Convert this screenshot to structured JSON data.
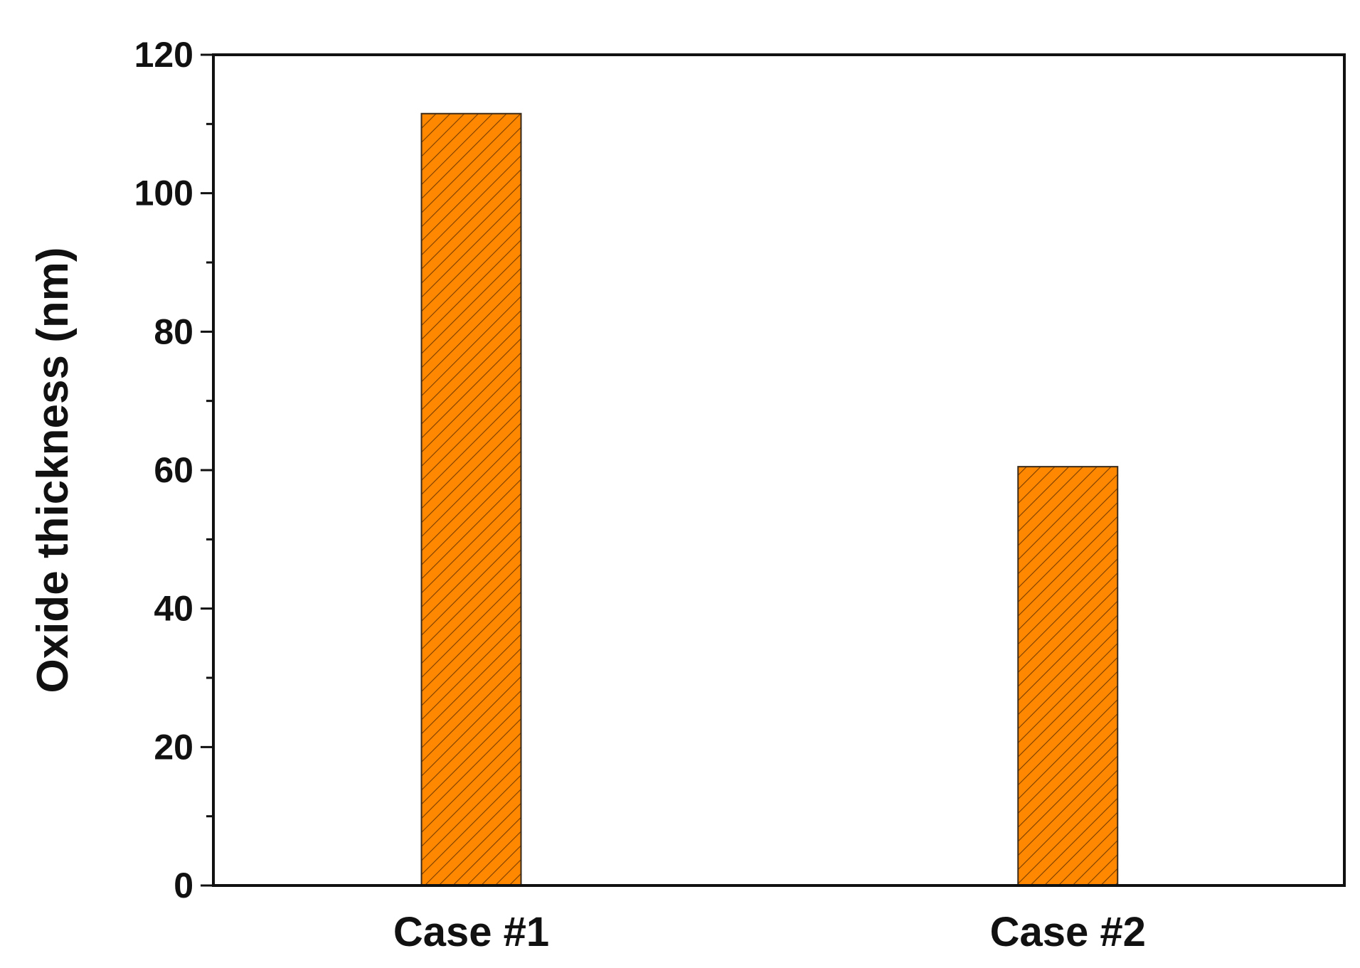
{
  "chart_data": {
    "type": "bar",
    "categories": [
      "Case #1",
      "Case #2"
    ],
    "values": [
      111.5,
      60.5
    ],
    "ylabel": "Oxide thickness (nm)",
    "xlabel": "",
    "ylim": [
      0,
      120
    ],
    "yticks": [
      "0",
      "20",
      "40",
      "60",
      "80",
      "100",
      "120"
    ],
    "grid": false,
    "legend": "none",
    "bar_color": "#ff8800",
    "bar_pattern": "diagonal-hatch"
  }
}
